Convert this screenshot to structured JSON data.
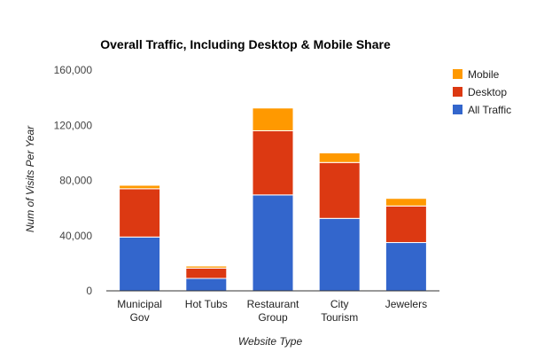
{
  "chart_data": {
    "type": "bar",
    "stacked": true,
    "title": "Overall Traffic, Including Desktop & Mobile Share",
    "xlabel": "Website Type",
    "ylabel": "Num of Visits Per Year",
    "ylim": [
      0,
      160000
    ],
    "yticks": [
      0,
      40000,
      80000,
      120000,
      160000
    ],
    "ytick_labels": [
      "0",
      "40,000",
      "80,000",
      "120,000",
      "160,000"
    ],
    "grid": false,
    "legend_position": "right",
    "categories": [
      [
        "Municipal",
        "Gov"
      ],
      [
        "Hot Tubs"
      ],
      [
        "Restaurant",
        "Group"
      ],
      [
        "City",
        "Tourism"
      ],
      [
        "Jewelers"
      ]
    ],
    "series": [
      {
        "name": "All Traffic",
        "color": "#3366cc",
        "values": [
          39000,
          9000,
          69500,
          52500,
          35000
        ]
      },
      {
        "name": "Desktop",
        "color": "#dc3912",
        "values": [
          35000,
          7500,
          46500,
          40500,
          26500
        ]
      },
      {
        "name": "Mobile",
        "color": "#ff9900",
        "values": [
          2500,
          1500,
          16500,
          7000,
          5500
        ]
      }
    ],
    "legend_order": [
      "Mobile",
      "Desktop",
      "All Traffic"
    ]
  }
}
